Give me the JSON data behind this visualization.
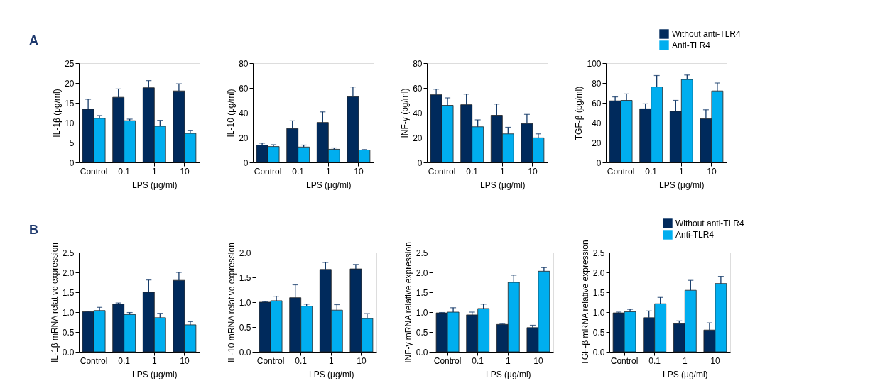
{
  "chart_data": [
    {
      "type": "bar",
      "annotations": [
        "A"
      ],
      "categories": [
        "Control",
        "0.1",
        "1",
        "10"
      ],
      "xlabel": "LPS (µg/ml)",
      "ylabel": "IL-1β (pg/ml)",
      "ylim": [
        0,
        25
      ],
      "yticks": [
        0,
        5,
        10,
        15,
        20,
        25
      ],
      "legend": false,
      "series": [
        {
          "color": "#002a5c",
          "values": [
            13.4,
            16.4,
            18.8,
            18.0
          ],
          "errors": [
            [
              13.4,
              15.9
            ],
            [
              16.4,
              18.5
            ],
            [
              18.8,
              20.6
            ],
            [
              18.0,
              19.8
            ]
          ]
        },
        {
          "color": "#00aeef",
          "values": [
            11.1,
            10.5,
            9.1,
            7.3
          ],
          "errors": [
            [
              11.1,
              11.8
            ],
            [
              10.5,
              10.9
            ],
            [
              9.1,
              10.6
            ],
            [
              7.3,
              8.1
            ]
          ]
        }
      ]
    },
    {
      "type": "bar",
      "categories": [
        "Control",
        "0.1",
        "1",
        "10"
      ],
      "xlabel": "LPS (µg/ml)",
      "ylabel": "IL-10 (pg/ml)",
      "ylim": [
        0,
        80
      ],
      "yticks": [
        0,
        20,
        40,
        60,
        80
      ],
      "legend": false,
      "series": [
        {
          "color": "#002a5c",
          "values": [
            14,
            27.3,
            32.2,
            53
          ],
          "errors": [
            [
              14,
              15.5
            ],
            [
              27.3,
              33.5
            ],
            [
              32.2,
              40.7
            ],
            [
              53,
              60.8
            ]
          ]
        },
        {
          "color": "#00aeef",
          "values": [
            12.8,
            12.4,
            10.6,
            10
          ],
          "errors": [
            [
              12.8,
              14.3
            ],
            [
              12.4,
              14
            ],
            [
              10.6,
              11.7
            ],
            [
              10,
              10.4
            ]
          ]
        }
      ]
    },
    {
      "type": "bar",
      "categories": [
        "Control",
        "0.1",
        "1",
        "10"
      ],
      "xlabel": "LPS (µg/ml)",
      "ylabel": "INF-γ (pg/ml)",
      "ylim": [
        0,
        80
      ],
      "yticks": [
        0,
        20,
        40,
        60,
        80
      ],
      "legend": false,
      "series": [
        {
          "color": "#002a5c",
          "values": [
            54.5,
            46.5,
            38,
            31.3
          ],
          "errors": [
            [
              54.5,
              59
            ],
            [
              46.5,
              55
            ],
            [
              38,
              47
            ],
            [
              31.3,
              38.7
            ]
          ]
        },
        {
          "color": "#00aeef",
          "values": [
            46,
            28.7,
            23,
            19.8
          ],
          "errors": [
            [
              46,
              52
            ],
            [
              28.7,
              34.3
            ],
            [
              23,
              28.3
            ],
            [
              19.8,
              23
            ]
          ]
        }
      ]
    },
    {
      "type": "bar",
      "categories": [
        "Control",
        "0.1",
        "1",
        "10"
      ],
      "xlabel": "LPS (µg/ml)",
      "ylabel": "TGF-β (pg/ml)",
      "ylim": [
        0,
        100
      ],
      "yticks": [
        0,
        20,
        40,
        60,
        80,
        100
      ],
      "legend": "top right",
      "series": [
        {
          "name": "Without anti-TLR4",
          "color": "#002a5c",
          "values": [
            62,
            54,
            51.5,
            44
          ],
          "errors": [
            [
              62,
              66
            ],
            [
              54,
              59
            ],
            [
              51.5,
              62.5
            ],
            [
              44,
              53
            ]
          ]
        },
        {
          "name": "Anti-TLR4",
          "color": "#00aeef",
          "values": [
            62.5,
            76,
            83.5,
            72
          ],
          "errors": [
            [
              62.5,
              69
            ],
            [
              76,
              87.5
            ],
            [
              83.5,
              88
            ],
            [
              72,
              80
            ]
          ]
        }
      ]
    },
    {
      "type": "bar",
      "annotations": [
        "B"
      ],
      "categories": [
        "Control",
        "0.1",
        "1",
        "10"
      ],
      "xlabel": "LPS (µg/ml)",
      "ylabel": "IL-1β mRNA relative expression",
      "ylim": [
        0,
        2.5
      ],
      "yticks": [
        {
          "value": 0,
          "label": "0.0"
        },
        0.5,
        {
          "value": 1,
          "label": "1.0"
        },
        1.5,
        {
          "value": 2,
          "label": "2.0"
        },
        2.5
      ],
      "legend": false,
      "series": [
        {
          "color": "#002a5c",
          "values": [
            1.01,
            1.2,
            1.5,
            1.8
          ],
          "errors": [
            [
              1.01,
              1.02
            ],
            [
              1.2,
              1.23
            ],
            [
              1.5,
              1.81
            ],
            [
              1.8,
              2.0
            ]
          ]
        },
        {
          "color": "#00aeef",
          "values": [
            1.04,
            0.94,
            0.86,
            0.68
          ],
          "errors": [
            [
              1.04,
              1.12
            ],
            [
              0.94,
              0.99
            ],
            [
              0.86,
              0.97
            ],
            [
              0.68,
              0.76
            ]
          ]
        }
      ]
    },
    {
      "type": "bar",
      "categories": [
        "Control",
        "0.1",
        "1",
        "10"
      ],
      "xlabel": "LPS (µg/ml)",
      "ylabel": "IL-10 mRNA relative expression",
      "ylim": [
        0,
        2
      ],
      "yticks": [
        {
          "value": 0,
          "label": "0.0"
        },
        0.5,
        {
          "value": 1,
          "label": "1.0"
        },
        1.5,
        {
          "value": 2,
          "label": "2.0"
        }
      ],
      "legend": false,
      "series": [
        {
          "color": "#002a5c",
          "values": [
            1.0,
            1.09,
            1.66,
            1.67
          ],
          "errors": [
            [
              1.0,
              1.01
            ],
            [
              1.09,
              1.35
            ],
            [
              1.66,
              1.8
            ],
            [
              1.67,
              1.76
            ]
          ]
        },
        {
          "color": "#00aeef",
          "values": [
            1.03,
            0.92,
            0.84,
            0.67
          ],
          "errors": [
            [
              1.03,
              1.12
            ],
            [
              0.92,
              0.96
            ],
            [
              0.84,
              0.95
            ],
            [
              0.67,
              0.77
            ]
          ]
        }
      ]
    },
    {
      "type": "bar",
      "categories": [
        "Control",
        "0.1",
        "1",
        "10"
      ],
      "xlabel": "LPS (µg/ml)",
      "ylabel": "INF-γ mRNA relative expression",
      "ylim": [
        0,
        2.5
      ],
      "yticks": [
        {
          "value": 0,
          "label": "0.0"
        },
        0.5,
        {
          "value": 1,
          "label": "1.0"
        },
        1.5,
        {
          "value": 2,
          "label": "2.0"
        },
        2.5
      ],
      "legend": false,
      "series": [
        {
          "color": "#002a5c",
          "values": [
            0.98,
            0.93,
            0.69,
            0.61
          ],
          "errors": [
            [
              0.98,
              0.99
            ],
            [
              0.93,
              1.0
            ],
            [
              0.69,
              0.7
            ],
            [
              0.61,
              0.67
            ]
          ]
        },
        {
          "color": "#00aeef",
          "values": [
            1.0,
            1.09,
            1.75,
            2.03
          ],
          "errors": [
            [
              1.0,
              1.11
            ],
            [
              1.09,
              1.2
            ],
            [
              1.75,
              1.93
            ],
            [
              2.03,
              2.12
            ]
          ]
        }
      ]
    },
    {
      "type": "bar",
      "categories": [
        "Control",
        "0.1",
        "1",
        "10"
      ],
      "xlabel": "LPS (µg/ml)",
      "ylabel": "TGF-β mRNA relative expression",
      "ylim": [
        0,
        2.5
      ],
      "yticks": [
        {
          "value": 0,
          "label": "0.0"
        },
        0.5,
        {
          "value": 1,
          "label": "1.0"
        },
        1.5,
        {
          "value": 2,
          "label": "2.0"
        },
        2.5
      ],
      "legend": "top right",
      "series": [
        {
          "name": "Without anti-TLR4",
          "color": "#002a5c",
          "values": [
            0.98,
            0.86,
            0.71,
            0.55
          ],
          "errors": [
            [
              0.98,
              1.0
            ],
            [
              0.86,
              1.03
            ],
            [
              0.71,
              0.78
            ],
            [
              0.55,
              0.73
            ]
          ]
        },
        {
          "name": "Anti-TLR4",
          "color": "#00aeef",
          "values": [
            1.01,
            1.21,
            1.55,
            1.72
          ],
          "errors": [
            [
              1.01,
              1.07
            ],
            [
              1.21,
              1.37
            ],
            [
              1.55,
              1.8
            ],
            [
              1.72,
              1.9
            ]
          ]
        }
      ]
    }
  ]
}
